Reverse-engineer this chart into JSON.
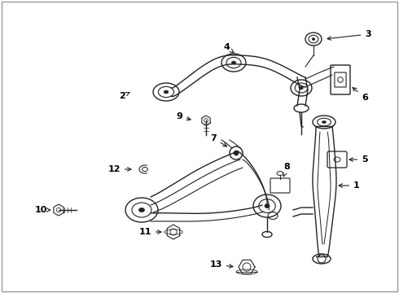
{
  "bg_color": "#ffffff",
  "line_color": "#222222",
  "label_color": "#000000",
  "fig_width": 4.9,
  "fig_height": 3.6,
  "dpi": 100,
  "border_color": "#cccccc"
}
